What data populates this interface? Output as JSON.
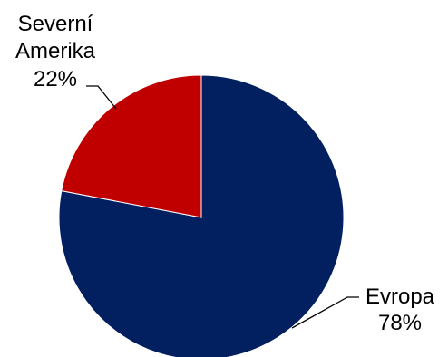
{
  "chart_data": {
    "type": "pie",
    "title": "",
    "slices": [
      {
        "name": "Evropa",
        "value": 78,
        "label": "78%",
        "color": "#022060"
      },
      {
        "name": "Severní Amerika",
        "name_lines": [
          "Severní",
          "Amerika"
        ],
        "value": 22,
        "label": "22%",
        "color": "#C00000"
      }
    ],
    "start_angle_deg": 0,
    "direction": "clockwise",
    "legend": "none",
    "data_labels": "outside-with-leader-lines"
  }
}
